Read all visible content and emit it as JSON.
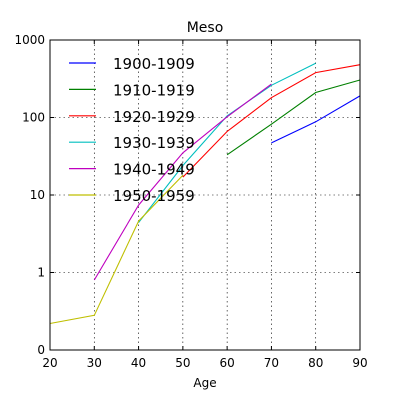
{
  "chart_data": {
    "type": "line",
    "title": "Meso",
    "xlabel": "Age",
    "ylabel": "",
    "xlim": [
      20,
      90
    ],
    "ylim": [
      0,
      1000
    ],
    "yscale": "log-with-zero",
    "grid": true,
    "legend_position": "top-left",
    "x_ticks": [
      "20",
      "30",
      "40",
      "50",
      "60",
      "70",
      "80",
      "90"
    ],
    "x_tick_values": [
      20,
      30,
      40,
      50,
      60,
      70,
      80,
      90
    ],
    "y_ticks": [
      "0",
      "1",
      "10",
      "100",
      "1000"
    ],
    "y_tick_values": [
      0,
      1,
      10,
      100,
      1000
    ],
    "series": [
      {
        "name": "1900-1909",
        "color": "#0000ff",
        "points": [
          [
            70,
            47
          ],
          [
            80,
            88
          ],
          [
            90,
            190
          ]
        ]
      },
      {
        "name": "1910-1919",
        "color": "#008000",
        "points": [
          [
            60,
            33
          ],
          [
            70,
            82
          ],
          [
            80,
            210
          ],
          [
            90,
            305
          ]
        ]
      },
      {
        "name": "1920-1929",
        "color": "#ff0000",
        "points": [
          [
            50,
            17
          ],
          [
            60,
            66
          ],
          [
            70,
            180
          ],
          [
            80,
            380
          ],
          [
            90,
            480
          ]
        ]
      },
      {
        "name": "1930-1939",
        "color": "#00bfbf",
        "points": [
          [
            40,
            4.4
          ],
          [
            50,
            24
          ],
          [
            60,
            105
          ],
          [
            70,
            260
          ],
          [
            80,
            500
          ]
        ]
      },
      {
        "name": "1940-1949",
        "color": "#bf00bf",
        "points": [
          [
            30,
            0.8
          ],
          [
            40,
            7.4
          ],
          [
            50,
            35
          ],
          [
            60,
            102
          ],
          [
            70,
            270
          ]
        ]
      },
      {
        "name": "1950-1959",
        "color": "#bfbf00",
        "points": [
          [
            20,
            0.22
          ],
          [
            30,
            0.28
          ],
          [
            40,
            4.6
          ],
          [
            50,
            18
          ]
        ]
      }
    ]
  }
}
